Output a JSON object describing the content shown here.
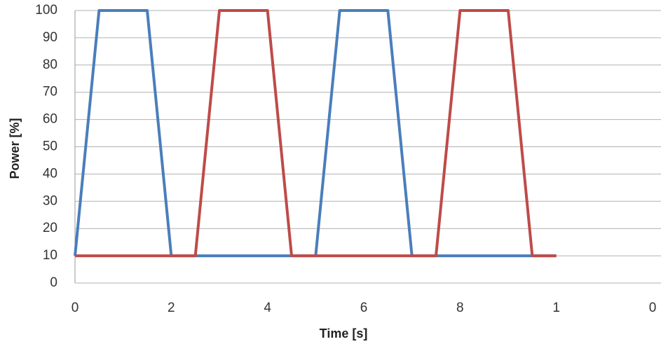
{
  "chart_data": {
    "type": "line",
    "x_label": "Time [s]",
    "y_label": "Power [%]",
    "series": [
      {
        "color": "#4a7ebb",
        "x": [
          0,
          0.5,
          1.5,
          2,
          5,
          5.5,
          6.5,
          7,
          10
        ],
        "values": [
          10,
          100,
          100,
          10,
          10,
          100,
          100,
          10,
          10
        ]
      },
      {
        "color": "#be4b48",
        "x": [
          0,
          2.5,
          3,
          4,
          4.5,
          7.5,
          8,
          9,
          9.5,
          10
        ],
        "values": [
          10,
          10,
          100,
          100,
          10,
          10,
          100,
          100,
          10,
          10
        ]
      }
    ],
    "xlim": [
      0,
      12
    ],
    "xticks": [
      0,
      2,
      4,
      6,
      8,
      {
        "value": 10,
        "label": "1"
      },
      {
        "value": 12,
        "label": "0"
      }
    ],
    "ylim": [
      0,
      100
    ],
    "yticks": [
      0,
      10,
      20,
      30,
      40,
      50,
      60,
      70,
      80,
      90,
      100
    ],
    "grid": true
  }
}
